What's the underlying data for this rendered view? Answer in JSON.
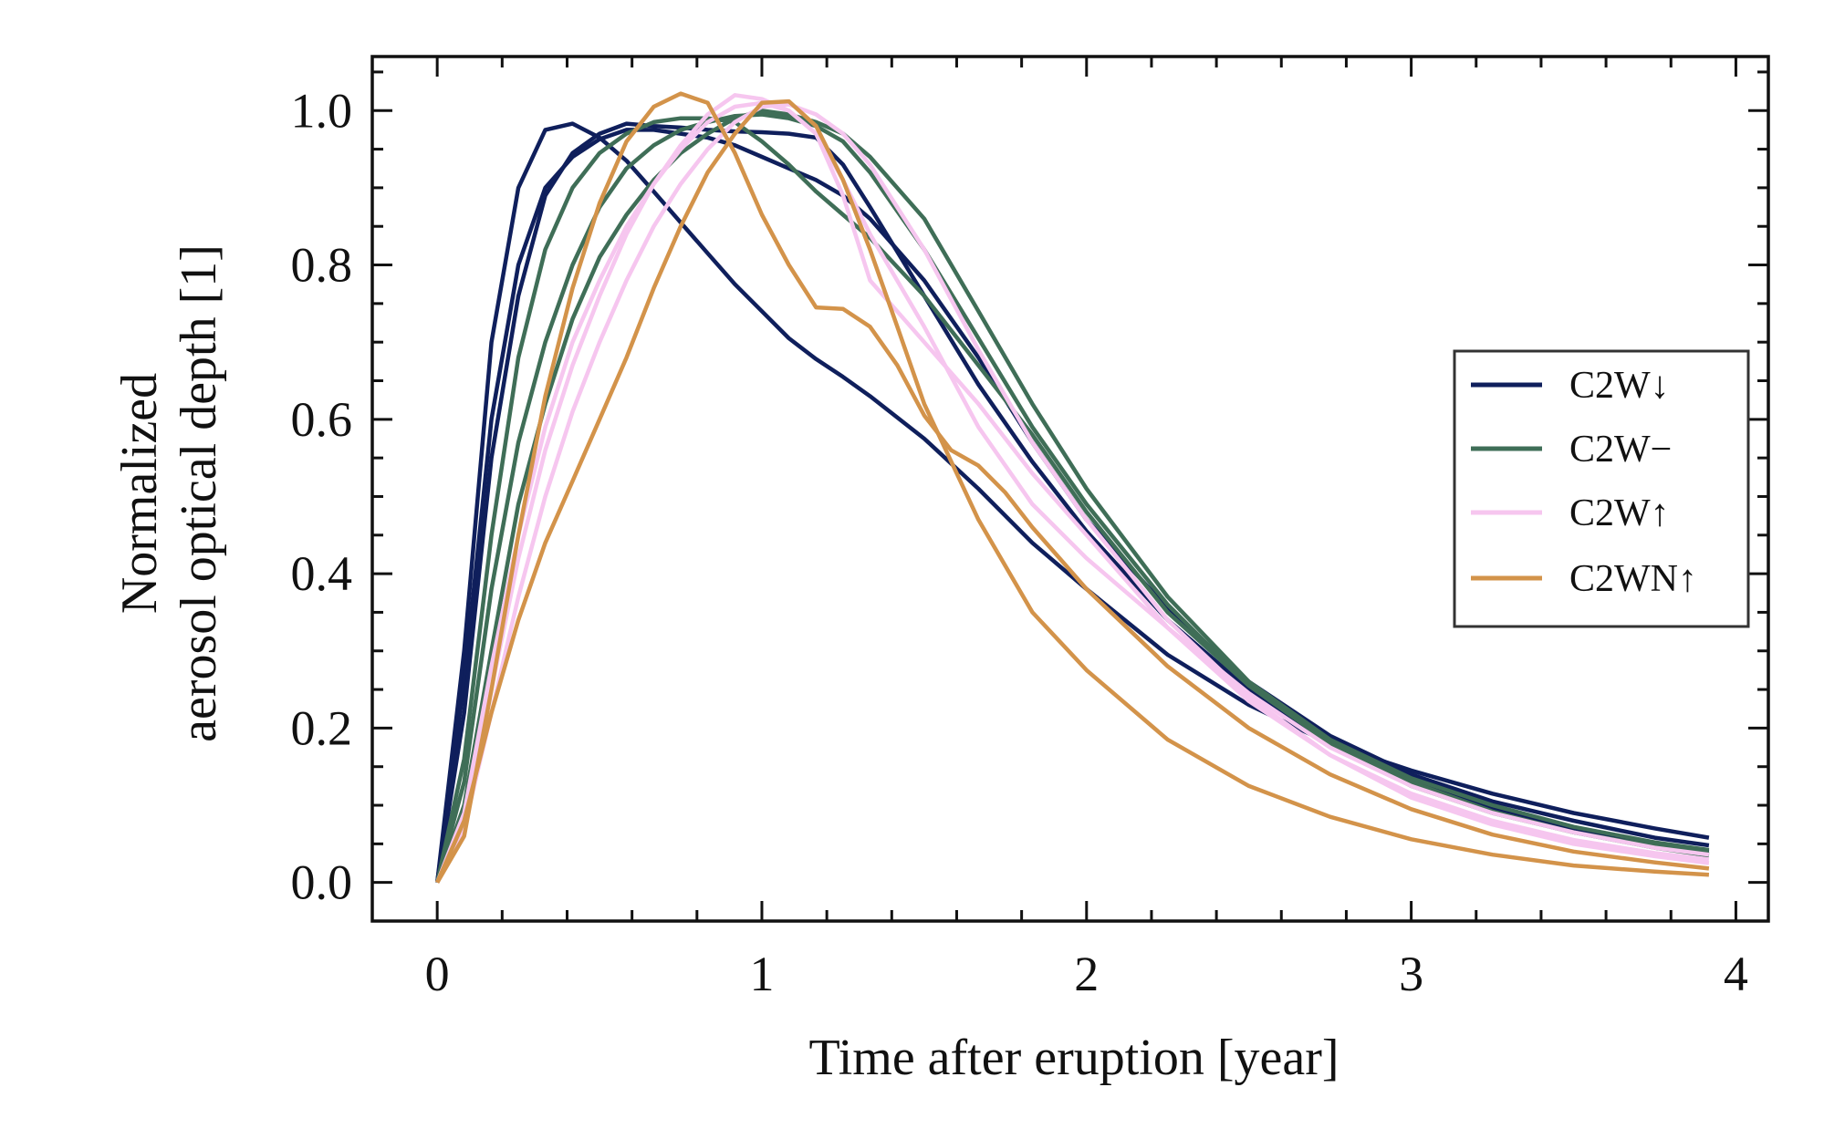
{
  "chart_data": {
    "type": "line",
    "xlabel": "Time after eruption [year]",
    "ylabel_lines": [
      "Normalized",
      "aerosol optical depth [1]"
    ],
    "xlim": [
      -0.2,
      4.1
    ],
    "ylim": [
      -0.05,
      1.07
    ],
    "xticks": [
      0,
      1,
      2,
      3,
      4
    ],
    "yticks": [
      0.0,
      0.2,
      0.4,
      0.6,
      0.8,
      1.0
    ],
    "ytick_labels": [
      "0.0",
      "0.2",
      "0.4",
      "0.6",
      "0.8",
      "1.0"
    ],
    "legend_position": "center-right",
    "legend": [
      {
        "label": "C2W↓",
        "color": "#0f1f5c"
      },
      {
        "label": "C2W−",
        "color": "#3f6e57"
      },
      {
        "label": "C2W↑",
        "color": "#f6c6ef"
      },
      {
        "label": "C2WN↑",
        "color": "#d3934a"
      }
    ],
    "series": [
      {
        "group": 0,
        "color": "#0f1f5c",
        "x": [
          0,
          0.083,
          0.167,
          0.25,
          0.333,
          0.417,
          0.5,
          0.583,
          0.667,
          0.75,
          0.833,
          0.917,
          1.0,
          1.083,
          1.167,
          1.25,
          1.333,
          1.5,
          1.667,
          1.833,
          2.0,
          2.25,
          2.5,
          2.75,
          3.0,
          3.25,
          3.5,
          3.75,
          3.917
        ],
        "y": [
          0.0,
          0.3,
          0.7,
          0.9,
          0.975,
          0.983,
          0.965,
          0.935,
          0.895,
          0.855,
          0.815,
          0.775,
          0.74,
          0.705,
          0.678,
          0.655,
          0.63,
          0.575,
          0.51,
          0.44,
          0.38,
          0.295,
          0.23,
          0.18,
          0.145,
          0.115,
          0.09,
          0.07,
          0.058
        ]
      },
      {
        "group": 0,
        "color": "#0f1f5c",
        "x": [
          0,
          0.083,
          0.167,
          0.25,
          0.333,
          0.417,
          0.5,
          0.583,
          0.667,
          0.75,
          0.833,
          0.917,
          1.0,
          1.083,
          1.167,
          1.25,
          1.333,
          1.5,
          1.667,
          1.833,
          2.0,
          2.25,
          2.5,
          2.75,
          3.0,
          3.25,
          3.5,
          3.75,
          3.917
        ],
        "y": [
          0.0,
          0.26,
          0.6,
          0.8,
          0.9,
          0.94,
          0.963,
          0.975,
          0.975,
          0.97,
          0.965,
          0.955,
          0.94,
          0.925,
          0.91,
          0.89,
          0.86,
          0.78,
          0.68,
          0.57,
          0.47,
          0.355,
          0.26,
          0.19,
          0.14,
          0.105,
          0.08,
          0.058,
          0.048
        ]
      },
      {
        "group": 0,
        "color": "#0f1f5c",
        "x": [
          0,
          0.083,
          0.167,
          0.25,
          0.333,
          0.417,
          0.5,
          0.583,
          0.667,
          0.75,
          0.833,
          0.917,
          1.0,
          1.083,
          1.167,
          1.25,
          1.333,
          1.5,
          1.667,
          1.833,
          2.0,
          2.25,
          2.5,
          2.75,
          3.0,
          3.25,
          3.5,
          3.75,
          3.917
        ],
        "y": [
          0.0,
          0.22,
          0.55,
          0.76,
          0.89,
          0.945,
          0.97,
          0.983,
          0.98,
          0.978,
          0.975,
          0.973,
          0.972,
          0.97,
          0.965,
          0.93,
          0.875,
          0.76,
          0.645,
          0.545,
          0.455,
          0.34,
          0.25,
          0.18,
          0.13,
          0.095,
          0.068,
          0.05,
          0.04
        ]
      },
      {
        "group": 1,
        "color": "#3f6e57",
        "x": [
          0,
          0.083,
          0.167,
          0.25,
          0.333,
          0.417,
          0.5,
          0.583,
          0.667,
          0.75,
          0.833,
          0.917,
          1.0,
          1.083,
          1.167,
          1.25,
          1.333,
          1.5,
          1.667,
          1.833,
          2.0,
          2.25,
          2.5,
          2.75,
          3.0,
          3.25,
          3.5,
          3.75,
          3.917
        ],
        "y": [
          0.0,
          0.16,
          0.45,
          0.68,
          0.82,
          0.9,
          0.945,
          0.97,
          0.985,
          0.99,
          0.99,
          0.985,
          0.96,
          0.93,
          0.895,
          0.865,
          0.835,
          0.76,
          0.67,
          0.58,
          0.48,
          0.35,
          0.255,
          0.185,
          0.135,
          0.1,
          0.072,
          0.052,
          0.042
        ]
      },
      {
        "group": 1,
        "color": "#3f6e57",
        "x": [
          0,
          0.083,
          0.167,
          0.25,
          0.333,
          0.417,
          0.5,
          0.583,
          0.667,
          0.75,
          0.833,
          0.917,
          1.0,
          1.083,
          1.167,
          1.25,
          1.333,
          1.5,
          1.667,
          1.833,
          2.0,
          2.25,
          2.5,
          2.75,
          3.0,
          3.25,
          3.5,
          3.75,
          3.917
        ],
        "y": [
          0.0,
          0.13,
          0.38,
          0.57,
          0.7,
          0.8,
          0.875,
          0.925,
          0.955,
          0.975,
          0.985,
          0.993,
          0.995,
          0.99,
          0.98,
          0.96,
          0.92,
          0.82,
          0.705,
          0.59,
          0.49,
          0.36,
          0.255,
          0.18,
          0.125,
          0.09,
          0.065,
          0.047,
          0.037
        ]
      },
      {
        "group": 1,
        "color": "#3f6e57",
        "x": [
          0,
          0.083,
          0.167,
          0.25,
          0.333,
          0.417,
          0.5,
          0.583,
          0.667,
          0.75,
          0.833,
          0.917,
          1.0,
          1.083,
          1.167,
          1.25,
          1.333,
          1.5,
          1.667,
          1.833,
          2.0,
          2.25,
          2.5,
          2.75,
          3.0,
          3.25,
          3.5,
          3.75,
          3.917
        ],
        "y": [
          0.0,
          0.1,
          0.3,
          0.49,
          0.62,
          0.73,
          0.81,
          0.865,
          0.91,
          0.945,
          0.97,
          0.99,
          1.0,
          0.995,
          0.985,
          0.97,
          0.94,
          0.86,
          0.74,
          0.62,
          0.51,
          0.37,
          0.26,
          0.185,
          0.13,
          0.092,
          0.065,
          0.045,
          0.035
        ]
      },
      {
        "group": 2,
        "color": "#f6c6ef",
        "x": [
          0,
          0.083,
          0.167,
          0.25,
          0.333,
          0.417,
          0.5,
          0.583,
          0.667,
          0.75,
          0.833,
          0.917,
          1.0,
          1.083,
          1.167,
          1.25,
          1.333,
          1.5,
          1.667,
          1.833,
          2.0,
          2.25,
          2.5,
          2.75,
          3.0,
          3.25,
          3.5,
          3.75,
          3.917
        ],
        "y": [
          0.0,
          0.09,
          0.28,
          0.45,
          0.59,
          0.7,
          0.78,
          0.85,
          0.905,
          0.95,
          0.985,
          1.005,
          1.01,
          1.0,
          0.97,
          0.91,
          0.84,
          0.72,
          0.59,
          0.49,
          0.42,
          0.33,
          0.245,
          0.175,
          0.125,
          0.09,
          0.065,
          0.045,
          0.036
        ]
      },
      {
        "group": 2,
        "color": "#f6c6ef",
        "x": [
          0,
          0.083,
          0.167,
          0.25,
          0.333,
          0.417,
          0.5,
          0.583,
          0.667,
          0.75,
          0.833,
          0.917,
          1.0,
          1.083,
          1.167,
          1.25,
          1.333,
          1.5,
          1.667,
          1.833,
          2.0,
          2.25,
          2.5,
          2.75,
          3.0,
          3.25,
          3.5,
          3.75,
          3.917
        ],
        "y": [
          0.0,
          0.08,
          0.25,
          0.42,
          0.56,
          0.67,
          0.76,
          0.84,
          0.905,
          0.955,
          0.995,
          1.02,
          1.015,
          1.0,
          0.97,
          0.89,
          0.78,
          0.7,
          0.62,
          0.53,
          0.45,
          0.33,
          0.235,
          0.165,
          0.115,
          0.08,
          0.055,
          0.038,
          0.03
        ]
      },
      {
        "group": 2,
        "color": "#f6c6ef",
        "x": [
          0,
          0.083,
          0.167,
          0.25,
          0.333,
          0.417,
          0.5,
          0.583,
          0.667,
          0.75,
          0.833,
          0.917,
          1.0,
          1.083,
          1.167,
          1.25,
          1.333,
          1.5,
          1.667,
          1.833,
          2.0,
          2.25,
          2.5,
          2.75,
          3.0,
          3.25,
          3.5,
          3.75,
          3.917
        ],
        "y": [
          0.0,
          0.07,
          0.22,
          0.37,
          0.5,
          0.61,
          0.7,
          0.78,
          0.85,
          0.905,
          0.95,
          0.985,
          1.005,
          1.008,
          0.995,
          0.97,
          0.93,
          0.82,
          0.69,
          0.57,
          0.47,
          0.34,
          0.24,
          0.165,
          0.11,
          0.075,
          0.05,
          0.034,
          0.025
        ]
      },
      {
        "group": 3,
        "color": "#d3934a",
        "x": [
          0,
          0.083,
          0.167,
          0.25,
          0.333,
          0.417,
          0.5,
          0.583,
          0.667,
          0.75,
          0.833,
          0.917,
          1.0,
          1.083,
          1.167,
          1.25,
          1.333,
          1.417,
          1.5,
          1.583,
          1.667,
          1.75,
          1.833,
          1.917,
          2.0,
          2.25,
          2.5,
          2.75,
          3.0,
          3.25,
          3.5,
          3.75,
          3.917
        ],
        "y": [
          0.0,
          0.06,
          0.25,
          0.45,
          0.63,
          0.77,
          0.88,
          0.96,
          1.005,
          1.022,
          1.01,
          0.945,
          0.865,
          0.8,
          0.745,
          0.743,
          0.72,
          0.67,
          0.605,
          0.56,
          0.54,
          0.505,
          0.46,
          0.42,
          0.38,
          0.28,
          0.2,
          0.14,
          0.095,
          0.062,
          0.04,
          0.026,
          0.018
        ]
      },
      {
        "group": 3,
        "color": "#d3934a",
        "x": [
          0,
          0.083,
          0.167,
          0.25,
          0.333,
          0.417,
          0.5,
          0.583,
          0.667,
          0.75,
          0.833,
          0.917,
          1.0,
          1.083,
          1.167,
          1.25,
          1.333,
          1.417,
          1.5,
          1.667,
          1.833,
          2.0,
          2.25,
          2.5,
          2.75,
          3.0,
          3.25,
          3.5,
          3.75,
          3.917
        ],
        "y": [
          0.0,
          0.08,
          0.22,
          0.34,
          0.44,
          0.52,
          0.6,
          0.68,
          0.77,
          0.85,
          0.92,
          0.97,
          1.01,
          1.012,
          0.98,
          0.91,
          0.82,
          0.72,
          0.62,
          0.47,
          0.35,
          0.275,
          0.185,
          0.125,
          0.085,
          0.056,
          0.036,
          0.022,
          0.014,
          0.01
        ]
      }
    ]
  }
}
